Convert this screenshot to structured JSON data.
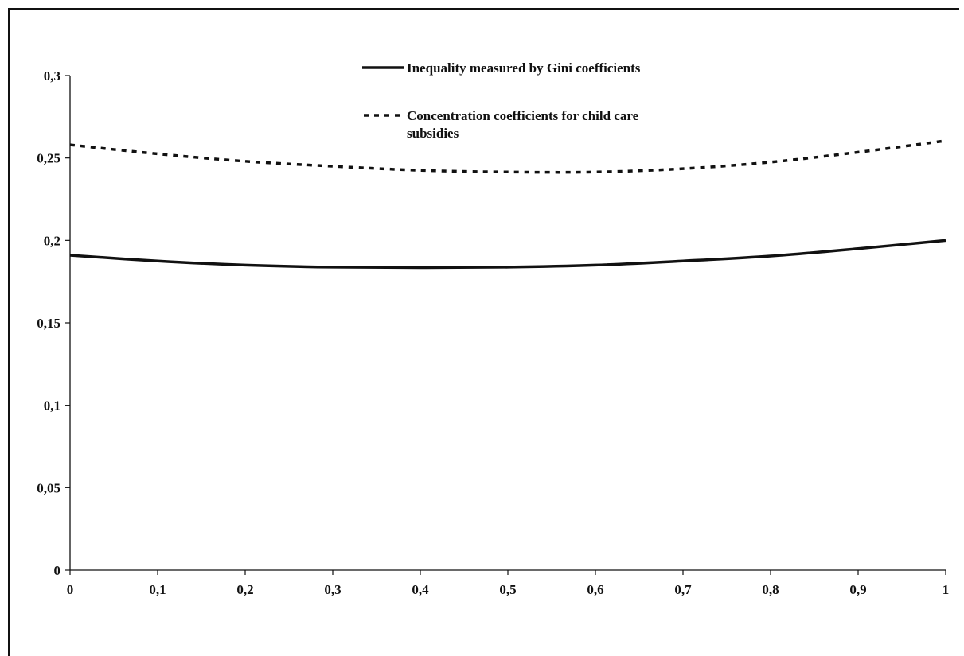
{
  "chart_data": {
    "type": "line",
    "title": "",
    "xlabel": "",
    "ylabel": "",
    "xlim": [
      0,
      1
    ],
    "ylim": [
      0,
      0.3
    ],
    "x_ticks": [
      "0",
      "0,1",
      "0,2",
      "0,3",
      "0,4",
      "0,5",
      "0,6",
      "0,7",
      "0,8",
      "0,9",
      "1"
    ],
    "y_ticks": [
      "0",
      "0,05",
      "0,1",
      "0,15",
      "0,2",
      "0,25",
      "0,3"
    ],
    "grid": false,
    "legend_position": "top-center",
    "x": [
      0,
      0.1,
      0.2,
      0.3,
      0.4,
      0.5,
      0.6,
      0.7,
      0.8,
      0.9,
      1
    ],
    "series": [
      {
        "name": "Inequality measured by Gini coefficients",
        "style": "solid",
        "color": "#111111",
        "values": [
          0.191,
          0.1875,
          0.185,
          0.1838,
          0.1835,
          0.1838,
          0.185,
          0.1875,
          0.1905,
          0.195,
          0.2
        ]
      },
      {
        "name": "Concentration coefficients for child care subsidies",
        "legend_lines": [
          "Concentration coefficients for child care",
          "subsidies"
        ],
        "style": "dashed",
        "color": "#111111",
        "values": [
          0.258,
          0.2525,
          0.248,
          0.245,
          0.2425,
          0.2415,
          0.2415,
          0.2435,
          0.2475,
          0.2535,
          0.2605
        ]
      }
    ]
  }
}
